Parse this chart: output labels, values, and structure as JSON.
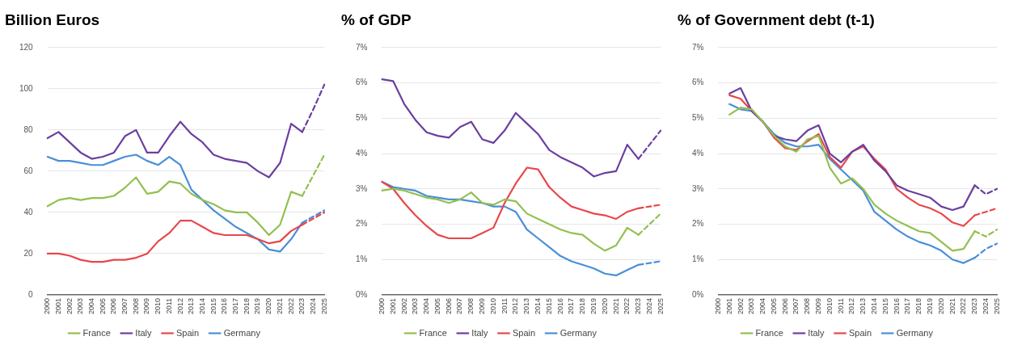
{
  "chart_data": [
    {
      "type": "line",
      "title": "Billion Euros",
      "categories": [
        "2000",
        "2001",
        "2002",
        "2003",
        "2004",
        "2005",
        "2006",
        "2007",
        "2008",
        "2009",
        "2010",
        "2011",
        "2012",
        "2013",
        "2014",
        "2015",
        "2016",
        "2017",
        "2018",
        "2019",
        "2020",
        "2021",
        "2022",
        "2023",
        "2024",
        "2025"
      ],
      "ylim": [
        0,
        120
      ],
      "yticks": [
        0,
        20,
        40,
        60,
        80,
        100,
        120
      ],
      "grid": "y",
      "legend": "bottom",
      "marker": "none",
      "series": [
        {
          "name": "France",
          "color": "#92c050",
          "line_style": "solid",
          "values": [
            43,
            46,
            47,
            46,
            47,
            47,
            48,
            52,
            57,
            49,
            50,
            55,
            54,
            49,
            46,
            44,
            41,
            40,
            40,
            35,
            29,
            34,
            50,
            48,
            null,
            null
          ]
        },
        {
          "name": "Italy",
          "color": "#6a3fa0",
          "line_style": "solid",
          "values": [
            76,
            79,
            74,
            69,
            66,
            67,
            69,
            77,
            80,
            69,
            69,
            77,
            84,
            78,
            74,
            68,
            66,
            65,
            64,
            60,
            57,
            64,
            83,
            79,
            null,
            null
          ]
        },
        {
          "name": "Spain",
          "color": "#e8474a",
          "line_style": "solid",
          "values": [
            20,
            20,
            19,
            17,
            16,
            16,
            17,
            17,
            18,
            20,
            26,
            30,
            36,
            36,
            33,
            30,
            29,
            29,
            29,
            27,
            25,
            26,
            31,
            34,
            null,
            null
          ]
        },
        {
          "name": "Germany",
          "color": "#4a8fd8",
          "line_style": "solid",
          "values": [
            67,
            65,
            65,
            64,
            63,
            63,
            65,
            67,
            68,
            65,
            63,
            67,
            63,
            51,
            46,
            41,
            37,
            33,
            30,
            27,
            22,
            21,
            27,
            35,
            null,
            null
          ]
        },
        {
          "color": "#92c050",
          "line_style": "dashed",
          "values": [
            null,
            null,
            null,
            null,
            null,
            null,
            null,
            null,
            null,
            null,
            null,
            null,
            null,
            null,
            null,
            null,
            null,
            null,
            null,
            null,
            null,
            null,
            null,
            48,
            58,
            68
          ]
        },
        {
          "color": "#6a3fa0",
          "line_style": "dashed",
          "values": [
            null,
            null,
            null,
            null,
            null,
            null,
            null,
            null,
            null,
            null,
            null,
            null,
            null,
            null,
            null,
            null,
            null,
            null,
            null,
            null,
            null,
            null,
            null,
            79,
            90,
            102
          ]
        },
        {
          "color": "#e8474a",
          "line_style": "dashed",
          "values": [
            null,
            null,
            null,
            null,
            null,
            null,
            null,
            null,
            null,
            null,
            null,
            null,
            null,
            null,
            null,
            null,
            null,
            null,
            null,
            null,
            null,
            null,
            null,
            34,
            37,
            40
          ]
        },
        {
          "color": "#4a8fd8",
          "line_style": "dashed",
          "values": [
            null,
            null,
            null,
            null,
            null,
            null,
            null,
            null,
            null,
            null,
            null,
            null,
            null,
            null,
            null,
            null,
            null,
            null,
            null,
            null,
            null,
            null,
            null,
            35,
            38,
            41
          ]
        }
      ]
    },
    {
      "type": "line",
      "title": "% of GDP",
      "categories": [
        "2000",
        "2001",
        "2002",
        "2003",
        "2004",
        "2005",
        "2006",
        "2007",
        "2008",
        "2009",
        "2010",
        "2011",
        "2012",
        "2013",
        "2014",
        "2015",
        "2016",
        "2017",
        "2018",
        "2019",
        "2020",
        "2021",
        "2022",
        "2023",
        "2024",
        "2025"
      ],
      "ylim": [
        0,
        7
      ],
      "yticks": [
        {
          "value": 0,
          "label": "0%"
        },
        {
          "value": 1,
          "label": "1%"
        },
        {
          "value": 2,
          "label": "2%"
        },
        {
          "value": 3,
          "label": "3%"
        },
        {
          "value": 4,
          "label": "4%"
        },
        {
          "value": 5,
          "label": "5%"
        },
        {
          "value": 6,
          "label": "6%"
        },
        {
          "value": 7,
          "label": "7%"
        }
      ],
      "grid": "y",
      "legend": "bottom",
      "marker": "none",
      "series": [
        {
          "name": "France",
          "color": "#92c050",
          "line_style": "solid",
          "values": [
            2.95,
            3.0,
            2.95,
            2.85,
            2.75,
            2.7,
            2.6,
            2.7,
            2.9,
            2.6,
            2.55,
            2.7,
            2.65,
            2.3,
            2.15,
            2.0,
            1.85,
            1.75,
            1.7,
            1.45,
            1.25,
            1.4,
            1.9,
            1.7,
            null,
            null
          ]
        },
        {
          "name": "Italy",
          "color": "#6a3fa0",
          "line_style": "solid",
          "values": [
            6.1,
            6.05,
            5.4,
            4.95,
            4.6,
            4.5,
            4.45,
            4.75,
            4.9,
            4.4,
            4.3,
            4.65,
            5.15,
            4.85,
            4.55,
            4.1,
            3.9,
            3.75,
            3.6,
            3.35,
            3.45,
            3.5,
            4.25,
            3.85,
            null,
            null
          ]
        },
        {
          "name": "Spain",
          "color": "#e8474a",
          "line_style": "solid",
          "values": [
            3.2,
            3.0,
            2.6,
            2.25,
            1.95,
            1.7,
            1.6,
            1.6,
            1.6,
            1.75,
            1.9,
            2.6,
            3.15,
            3.6,
            3.55,
            3.05,
            2.75,
            2.5,
            2.4,
            2.3,
            2.25,
            2.15,
            2.35,
            2.45,
            null,
            null
          ]
        },
        {
          "name": "Germany",
          "color": "#4a8fd8",
          "line_style": "solid",
          "values": [
            3.2,
            3.05,
            3.0,
            2.95,
            2.8,
            2.75,
            2.7,
            2.7,
            2.65,
            2.6,
            2.5,
            2.5,
            2.35,
            1.85,
            1.6,
            1.35,
            1.1,
            0.95,
            0.85,
            0.75,
            0.6,
            0.55,
            0.7,
            0.85,
            null,
            null
          ]
        },
        {
          "color": "#92c050",
          "line_style": "dashed",
          "values": [
            null,
            null,
            null,
            null,
            null,
            null,
            null,
            null,
            null,
            null,
            null,
            null,
            null,
            null,
            null,
            null,
            null,
            null,
            null,
            null,
            null,
            null,
            null,
            1.7,
            2.0,
            2.3
          ]
        },
        {
          "color": "#6a3fa0",
          "line_style": "dashed",
          "values": [
            null,
            null,
            null,
            null,
            null,
            null,
            null,
            null,
            null,
            null,
            null,
            null,
            null,
            null,
            null,
            null,
            null,
            null,
            null,
            null,
            null,
            null,
            null,
            3.85,
            4.25,
            4.65
          ]
        },
        {
          "color": "#e8474a",
          "line_style": "dashed",
          "values": [
            null,
            null,
            null,
            null,
            null,
            null,
            null,
            null,
            null,
            null,
            null,
            null,
            null,
            null,
            null,
            null,
            null,
            null,
            null,
            null,
            null,
            null,
            null,
            2.45,
            2.5,
            2.55
          ]
        },
        {
          "color": "#4a8fd8",
          "line_style": "dashed",
          "values": [
            null,
            null,
            null,
            null,
            null,
            null,
            null,
            null,
            null,
            null,
            null,
            null,
            null,
            null,
            null,
            null,
            null,
            null,
            null,
            null,
            null,
            null,
            null,
            0.85,
            0.9,
            0.95
          ]
        }
      ]
    },
    {
      "type": "line",
      "title": "% of Government debt (t-1)",
      "categories": [
        "2000",
        "2001",
        "2002",
        "2003",
        "2004",
        "2005",
        "2006",
        "2007",
        "2008",
        "2009",
        "2010",
        "2011",
        "2012",
        "2013",
        "2014",
        "2015",
        "2016",
        "2017",
        "2018",
        "2019",
        "2020",
        "2021",
        "2022",
        "2023",
        "2024",
        "2025"
      ],
      "ylim": [
        0,
        7
      ],
      "yticks": [
        {
          "value": 0,
          "label": "0%"
        },
        {
          "value": 1,
          "label": "1%"
        },
        {
          "value": 2,
          "label": "2%"
        },
        {
          "value": 3,
          "label": "3%"
        },
        {
          "value": 4,
          "label": "4%"
        },
        {
          "value": 5,
          "label": "5%"
        },
        {
          "value": 6,
          "label": "6%"
        },
        {
          "value": 7,
          "label": "7%"
        }
      ],
      "grid": "y",
      "legend": "bottom",
      "marker": "none",
      "series": [
        {
          "name": "France",
          "color": "#92c050",
          "line_style": "solid",
          "values": [
            null,
            5.1,
            5.3,
            5.25,
            4.9,
            4.5,
            4.2,
            4.05,
            4.4,
            4.5,
            3.6,
            3.15,
            3.3,
            3.0,
            2.55,
            2.3,
            2.1,
            1.95,
            1.8,
            1.75,
            1.5,
            1.25,
            1.3,
            1.8,
            null,
            null
          ]
        },
        {
          "name": "Italy",
          "color": "#6a3fa0",
          "line_style": "solid",
          "values": [
            null,
            5.7,
            5.85,
            5.2,
            4.9,
            4.5,
            4.4,
            4.35,
            4.65,
            4.8,
            4.0,
            3.75,
            4.05,
            4.25,
            3.8,
            3.5,
            3.1,
            2.95,
            2.85,
            2.75,
            2.5,
            2.4,
            2.5,
            3.1,
            null,
            null
          ]
        },
        {
          "name": "Spain",
          "color": "#e8474a",
          "line_style": "solid",
          "values": [
            null,
            5.65,
            5.55,
            5.2,
            4.9,
            4.45,
            4.15,
            4.1,
            4.35,
            4.55,
            3.9,
            3.6,
            4.05,
            4.2,
            3.85,
            3.55,
            3.0,
            2.75,
            2.55,
            2.45,
            2.3,
            2.05,
            1.95,
            2.25,
            null,
            null
          ]
        },
        {
          "name": "Germany",
          "color": "#4a8fd8",
          "line_style": "solid",
          "values": [
            null,
            5.4,
            5.25,
            5.2,
            4.9,
            4.55,
            4.3,
            4.2,
            4.2,
            4.25,
            3.85,
            3.55,
            3.25,
            2.95,
            2.35,
            2.1,
            1.85,
            1.65,
            1.5,
            1.4,
            1.25,
            1.0,
            0.9,
            1.05,
            null,
            null
          ]
        },
        {
          "color": "#92c050",
          "line_style": "dashed",
          "values": [
            null,
            null,
            null,
            null,
            null,
            null,
            null,
            null,
            null,
            null,
            null,
            null,
            null,
            null,
            null,
            null,
            null,
            null,
            null,
            null,
            null,
            null,
            null,
            1.8,
            1.65,
            1.85
          ]
        },
        {
          "color": "#6a3fa0",
          "line_style": "dashed",
          "values": [
            null,
            null,
            null,
            null,
            null,
            null,
            null,
            null,
            null,
            null,
            null,
            null,
            null,
            null,
            null,
            null,
            null,
            null,
            null,
            null,
            null,
            null,
            null,
            3.1,
            2.85,
            3.0
          ]
        },
        {
          "color": "#e8474a",
          "line_style": "dashed",
          "values": [
            null,
            null,
            null,
            null,
            null,
            null,
            null,
            null,
            null,
            null,
            null,
            null,
            null,
            null,
            null,
            null,
            null,
            null,
            null,
            null,
            null,
            null,
            null,
            2.25,
            2.35,
            2.45
          ]
        },
        {
          "color": "#4a8fd8",
          "line_style": "dashed",
          "values": [
            null,
            null,
            null,
            null,
            null,
            null,
            null,
            null,
            null,
            null,
            null,
            null,
            null,
            null,
            null,
            null,
            null,
            null,
            null,
            null,
            null,
            null,
            null,
            1.05,
            1.3,
            1.45
          ]
        }
      ]
    }
  ]
}
